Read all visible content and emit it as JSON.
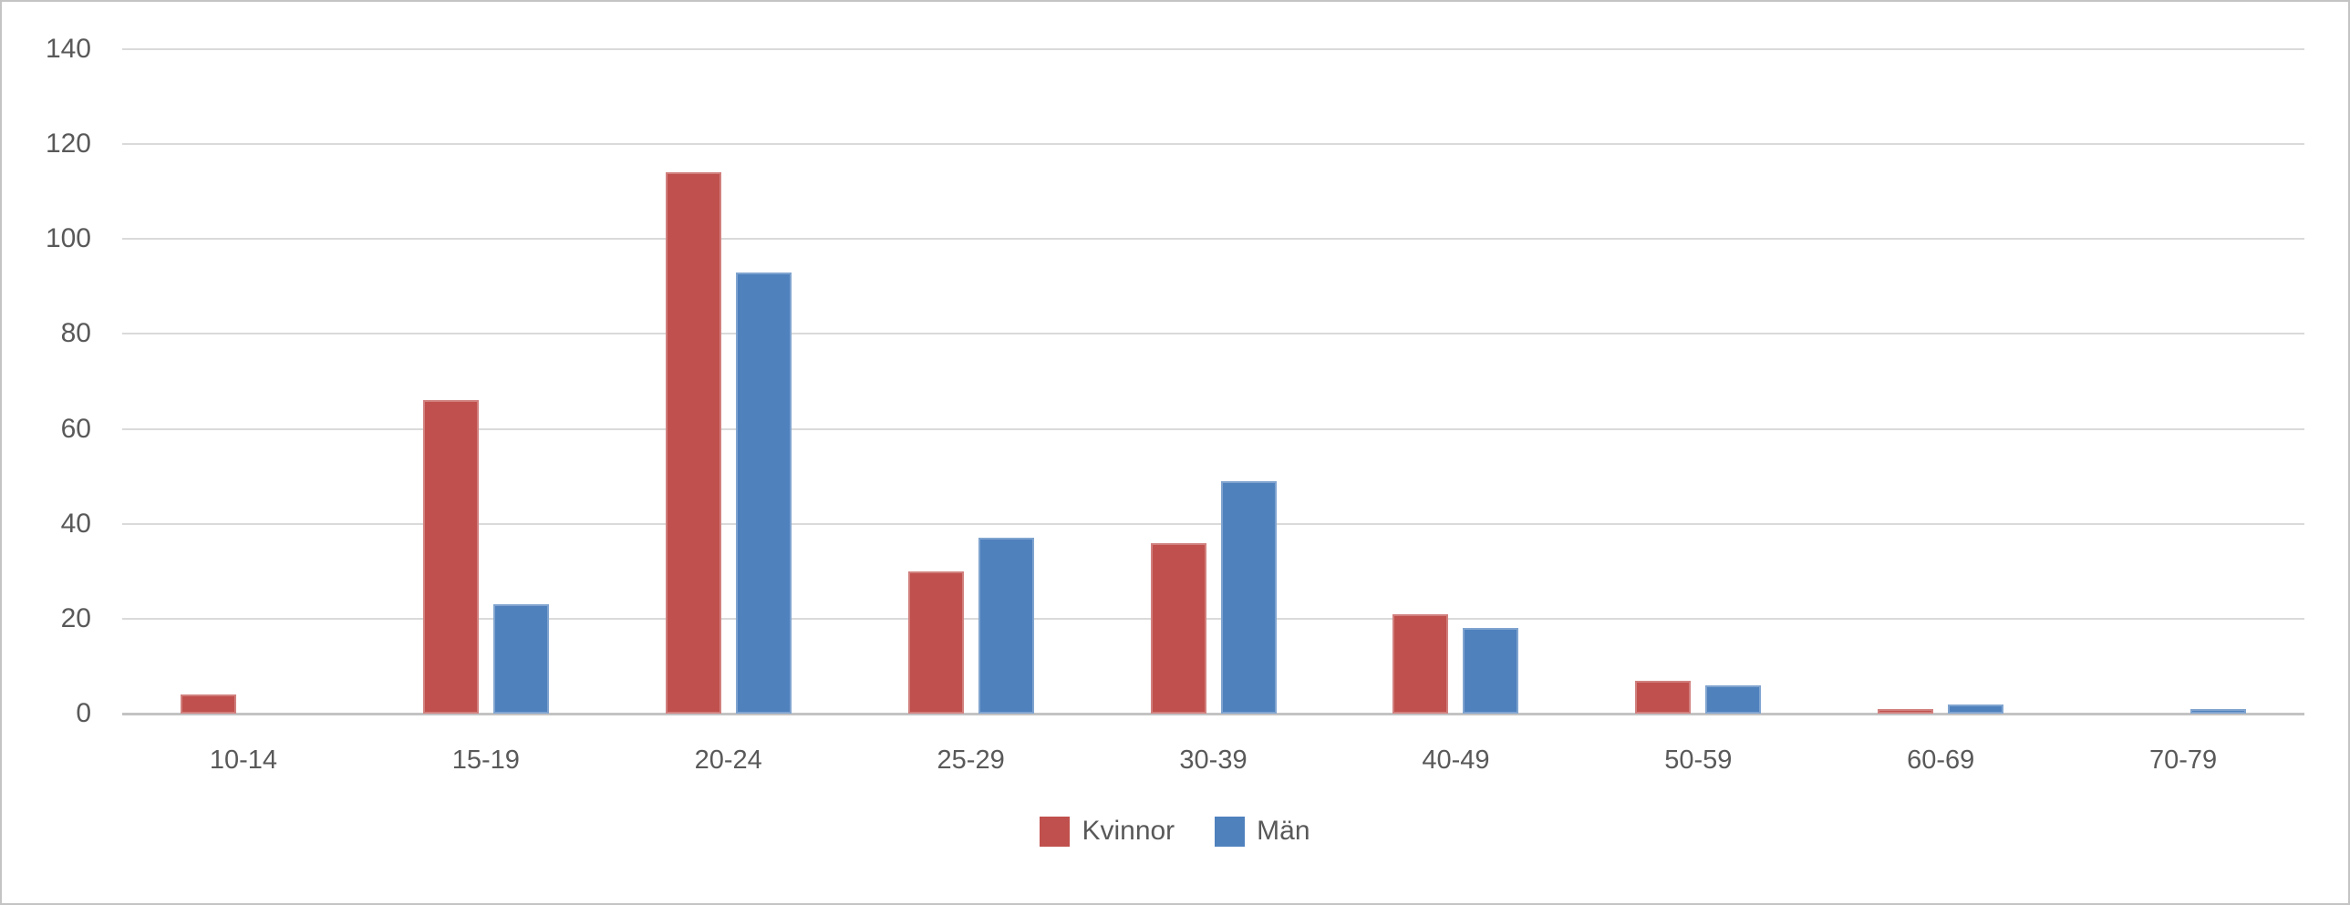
{
  "chart_data": {
    "type": "bar",
    "categories": [
      "10-14",
      "15-19",
      "20-24",
      "25-29",
      "30-39",
      "40-49",
      "50-59",
      "60-69",
      "70-79"
    ],
    "series": [
      {
        "name": "Kvinnor",
        "color": "#C0504D",
        "values": [
          4,
          66,
          114,
          30,
          36,
          21,
          7,
          1,
          0
        ]
      },
      {
        "name": "Män",
        "color": "#4F81BD",
        "values": [
          0,
          23,
          93,
          37,
          49,
          18,
          6,
          2,
          1
        ]
      }
    ],
    "title": "",
    "xlabel": "",
    "ylabel": "",
    "ylim": [
      0,
      140
    ],
    "yticks": [
      0,
      20,
      40,
      60,
      80,
      100,
      120,
      140
    ],
    "grid": true,
    "legend_position": "bottom-center"
  },
  "colors": {
    "gridline": "#dadada",
    "axis_line": "#c3c3c3",
    "tick_text": "#595959",
    "frame_border": "#c4c4c4",
    "background": "#ffffff"
  }
}
